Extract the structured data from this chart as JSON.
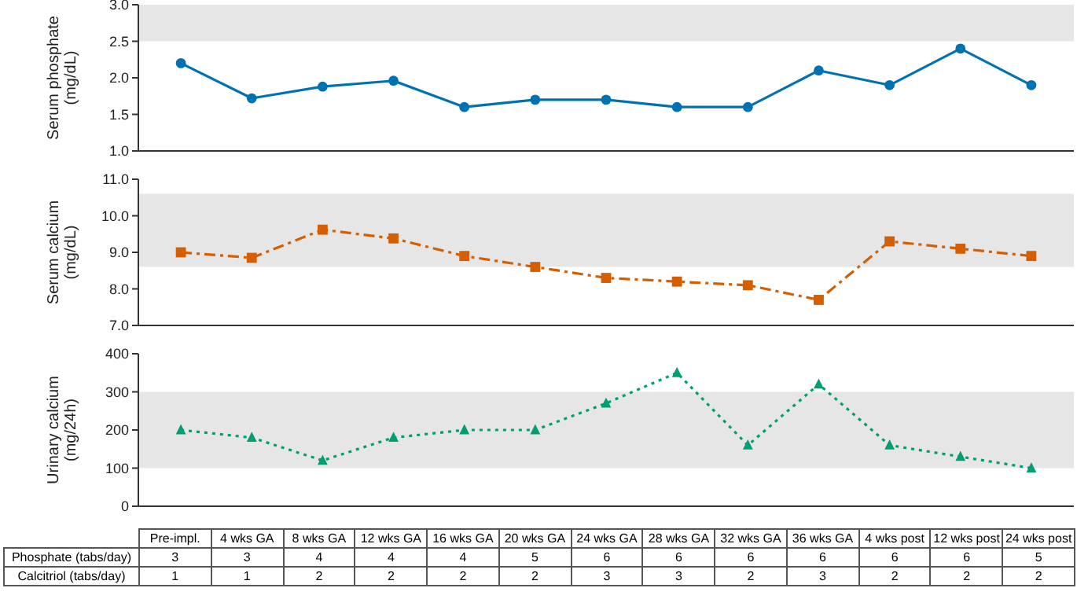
{
  "chart_data": [
    {
      "type": "line",
      "ylabel": "Serum phosphate (mg/dL)",
      "categories": [
        null,
        null,
        null,
        null,
        null,
        null,
        null,
        null,
        null,
        null,
        null,
        null,
        null
      ],
      "series": [
        {
          "color": "#0072b2",
          "values": [
            2.2,
            1.72,
            1.88,
            1.96,
            1.6,
            1.7,
            1.7,
            1.6,
            1.6,
            2.1,
            1.9,
            2.4,
            1.9
          ],
          "marker": "circle",
          "line_style": "solid"
        }
      ],
      "ylim": [
        1,
        3
      ],
      "yticks": [
        {
          "value": 1,
          "label": "1.0"
        },
        {
          "value": 1.5,
          "label": "1.5"
        },
        {
          "value": 2,
          "label": "2.0"
        },
        {
          "value": 2.5,
          "label": "2.5"
        },
        {
          "value": 3,
          "label": "3.0"
        }
      ],
      "bands": [
        {
          "axis": "y",
          "from": 2.5,
          "to": 3,
          "color": "#e6e6e6"
        }
      ],
      "tick_labels": "y"
    },
    {
      "type": "line",
      "ylabel": "Serum calcium (mg/dL)",
      "categories": [
        null,
        null,
        null,
        null,
        null,
        null,
        null,
        null,
        null,
        null,
        null,
        null,
        null
      ],
      "series": [
        {
          "color": "#d55e00",
          "values": [
            9.0,
            8.85,
            9.62,
            9.38,
            8.9,
            8.6,
            8.3,
            8.2,
            8.1,
            7.7,
            9.3,
            9.1,
            8.9
          ],
          "marker": "square",
          "line_style": "dashed"
        }
      ],
      "ylim": [
        7,
        11
      ],
      "yticks": [
        {
          "value": 7,
          "label": "7.0"
        },
        {
          "value": 8,
          "label": "8.0"
        },
        {
          "value": 9,
          "label": "9.0"
        },
        {
          "value": 10,
          "label": "10.0"
        },
        {
          "value": 11,
          "label": "11.0"
        }
      ],
      "bands": [
        {
          "axis": "y",
          "from": 8.6,
          "to": 10.6,
          "color": "#e6e6e6"
        }
      ],
      "tick_labels": "y"
    },
    {
      "type": "line",
      "ylabel": "Urinary calcium (mg/24h)",
      "categories": [
        null,
        null,
        null,
        null,
        null,
        null,
        null,
        null,
        null,
        null,
        null,
        null,
        null
      ],
      "series": [
        {
          "color": "#009e73",
          "values": [
            200,
            180,
            120,
            180,
            200,
            200,
            270,
            350,
            160,
            320,
            160,
            130,
            100
          ],
          "marker": "triangle",
          "line_style": "dotted"
        }
      ],
      "ylim": [
        0,
        400
      ],
      "yticks": [
        0,
        100,
        200,
        300,
        400
      ],
      "bands": [
        {
          "axis": "y",
          "from": 100,
          "to": 300,
          "color": "#e6e6e6"
        }
      ],
      "tick_labels": "y"
    },
    {
      "type": "other",
      "categories": [
        "Pre-impl.",
        "4 wks GA",
        "8 wks GA",
        "12 wks GA",
        "16 wks GA",
        "20 wks GA",
        "24 wks GA",
        "28 wks GA",
        "32 wks GA",
        "36 wks GA",
        "4 wks post",
        "12 wks post",
        "24 wks post"
      ],
      "series": [
        {
          "name": "Phosphate (tabs/day)",
          "values": [
            3,
            3,
            4,
            4,
            4,
            5,
            6,
            6,
            6,
            6,
            6,
            6,
            5
          ]
        },
        {
          "name": "Calcitriol (tabs/day)",
          "values": [
            1,
            1,
            2,
            2,
            2,
            2,
            3,
            3,
            2,
            3,
            2,
            2,
            2
          ]
        }
      ],
      "data_labels": true
    }
  ]
}
